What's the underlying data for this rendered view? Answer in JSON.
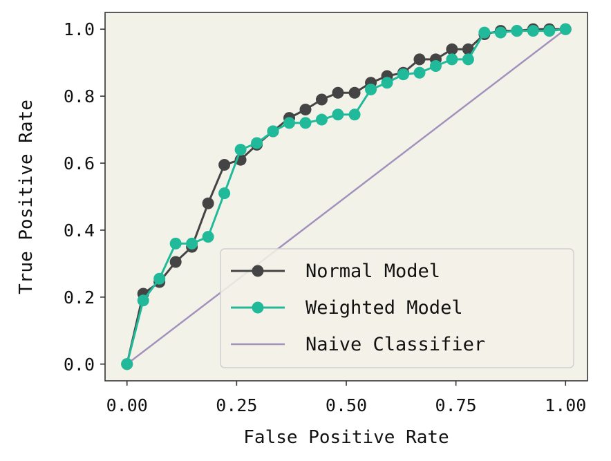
{
  "chart_data": {
    "type": "line",
    "title": "",
    "xlabel": "False Positive Rate",
    "ylabel": "True Positive Rate",
    "xlim": [
      -0.05,
      1.05
    ],
    "ylim": [
      -0.05,
      1.05
    ],
    "xticks": [
      "0.00",
      "0.25",
      "0.50",
      "0.75",
      "1.00"
    ],
    "yticks": [
      "0.0",
      "0.2",
      "0.4",
      "0.6",
      "0.8",
      "1.0"
    ],
    "grid": false,
    "legend_position": "lower-right",
    "background_color": "#f3f2e8",
    "series": [
      {
        "name": "Normal Model",
        "color": "#444444",
        "marker": "circle",
        "x": [
          0.0,
          0.037,
          0.074,
          0.111,
          0.148,
          0.185,
          0.222,
          0.259,
          0.296,
          0.333,
          0.37,
          0.407,
          0.444,
          0.481,
          0.519,
          0.556,
          0.593,
          0.63,
          0.667,
          0.704,
          0.741,
          0.778,
          0.815,
          0.852,
          0.889,
          0.926,
          0.963,
          1.0
        ],
        "y": [
          0.0,
          0.21,
          0.245,
          0.305,
          0.35,
          0.48,
          0.595,
          0.61,
          0.655,
          0.695,
          0.735,
          0.76,
          0.79,
          0.81,
          0.81,
          0.84,
          0.86,
          0.87,
          0.91,
          0.91,
          0.94,
          0.94,
          0.985,
          0.995,
          0.995,
          1.0,
          1.0,
          1.0
        ]
      },
      {
        "name": "Weighted Model",
        "color": "#20b99a",
        "marker": "circle",
        "x": [
          0.0,
          0.037,
          0.074,
          0.111,
          0.148,
          0.185,
          0.222,
          0.259,
          0.296,
          0.333,
          0.37,
          0.407,
          0.444,
          0.481,
          0.519,
          0.556,
          0.593,
          0.63,
          0.667,
          0.704,
          0.741,
          0.778,
          0.815,
          0.852,
          0.889,
          0.926,
          0.963,
          1.0
        ],
        "y": [
          0.0,
          0.19,
          0.255,
          0.36,
          0.36,
          0.38,
          0.51,
          0.64,
          0.66,
          0.695,
          0.72,
          0.72,
          0.73,
          0.745,
          0.745,
          0.82,
          0.84,
          0.865,
          0.87,
          0.89,
          0.91,
          0.91,
          0.99,
          0.99,
          0.995,
          0.995,
          0.995,
          1.0
        ]
      },
      {
        "name": "Naive Classifier",
        "color": "#a391bd",
        "marker": "none",
        "x": [
          0.0,
          1.0
        ],
        "y": [
          0.0,
          1.0
        ]
      }
    ]
  }
}
